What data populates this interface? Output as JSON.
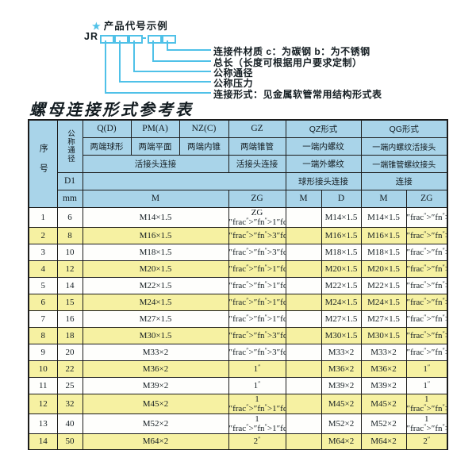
{
  "colors": {
    "page_bg": "#ffffff",
    "header_bg": "#a9d4e9",
    "row_alt": "#f6f1a2",
    "row_plain": "#fefefc",
    "line_cyan": "#4fc1e8",
    "border_dark": "#1c1c1c",
    "text_dark": "#141d22"
  },
  "diagram": {
    "star_icon": "★",
    "title": "产品代号示例",
    "code_prefix": "JR",
    "labels": [
      "连接件材质  c：为碳钢  b：为不锈钢",
      "总长（长度可根据用户要求定制）",
      "公称通径",
      "公称压力",
      "连接形式：见金属软管常用结构形式表"
    ]
  },
  "table": {
    "title": "螺母连接形式参考表",
    "header": {
      "seq": "序号",
      "dn": "公称通径",
      "d1": "D1",
      "mm": "mm",
      "col_q": "Q(D)",
      "col_pm": "PM(A)",
      "col_nz": "NZ(C)",
      "col_gz": "GZ",
      "col_qz": "QZ形式",
      "col_qg": "QG形式",
      "q_desc": "两端球形",
      "pm_desc": "两端平面",
      "nz_desc": "两端内锥",
      "gz_desc": "两端锥管",
      "qz_desc1": "一端内螺纹",
      "qg_desc1": "一端内螺纹活接头",
      "union_conn": "活接头连接",
      "gz_conn": "活接头连接",
      "qz_desc2": "一端外螺纹",
      "qg_desc2": "一端锥管螺纹接头",
      "qz_conn": "球形接头连接",
      "qg_conn": "连接",
      "m_main": "M",
      "zg_main": "ZG",
      "qz_m": "M",
      "qz_d": "D",
      "qg_m": "M",
      "qg_zg": "ZG"
    },
    "rows": [
      {
        "seq": "1",
        "dn": "6",
        "m": "M14×1.5",
        "zg": "ZG 1/4\"",
        "qz_m": "",
        "qz_d": "M14×1.5",
        "qg_m": "M14×1.5",
        "qg_zg": "1/4\""
      },
      {
        "seq": "2",
        "dn": "8",
        "m": "M16×1.5",
        "zg": "3/8\"",
        "qz_m": "",
        "qz_d": "M16×1.5",
        "qg_m": "M16×1.5",
        "qg_zg": "3/8\""
      },
      {
        "seq": "3",
        "dn": "10",
        "m": "M18×1.5",
        "zg": "3/8\"",
        "qz_m": "",
        "qz_d": "M18×1.5",
        "qg_m": "M18×1.5",
        "qg_zg": "3/8\""
      },
      {
        "seq": "4",
        "dn": "12",
        "m": "M20×1.5",
        "zg": "1/2\"",
        "qz_m": "",
        "qz_d": "M20×1.5",
        "qg_m": "M20×1.5",
        "qg_zg": "1/2\""
      },
      {
        "seq": "5",
        "dn": "14",
        "m": "M22×1.5",
        "zg": "1/2\"",
        "qz_m": "",
        "qz_d": "M22×1.5",
        "qg_m": "M22×1.5",
        "qg_zg": "1/2\""
      },
      {
        "seq": "6",
        "dn": "15",
        "m": "M24×1.5",
        "zg": "1/2\"",
        "qz_m": "",
        "qz_d": "M24×1.5",
        "qg_m": "M24×1.5",
        "qg_zg": "1/2\""
      },
      {
        "seq": "7",
        "dn": "16",
        "m": "M27×1.5",
        "zg": "1/2\"",
        "qz_m": "",
        "qz_d": "M27×1.5",
        "qg_m": "M27×1.5",
        "qg_zg": "1/2\""
      },
      {
        "seq": "8",
        "dn": "18",
        "m": "M30×1.5",
        "zg": "3/4\"",
        "qz_m": "",
        "qz_d": "M30×1.5",
        "qg_m": "M30×1.5",
        "qg_zg": "3/4\""
      },
      {
        "seq": "9",
        "dn": "20",
        "m": "M33×2",
        "zg": "3/4\"",
        "qz_m": "",
        "qz_d": "M33×2",
        "qg_m": "M33×2",
        "qg_zg": "3/4\""
      },
      {
        "seq": "10",
        "dn": "22",
        "m": "M36×2",
        "zg": "1\"",
        "qz_m": "",
        "qz_d": "M36×2",
        "qg_m": "M36×2",
        "qg_zg": "1\""
      },
      {
        "seq": "11",
        "dn": "25",
        "m": "M39×2",
        "zg": "1\"",
        "qz_m": "",
        "qz_d": "M39×2",
        "qg_m": "M39×2",
        "qg_zg": "1\""
      },
      {
        "seq": "12",
        "dn": "32",
        "m": "M45×2",
        "zg": "1 1/4\"",
        "qz_m": "",
        "qz_d": "M45×2",
        "qg_m": "M45×2",
        "qg_zg": "1 1/4\""
      },
      {
        "seq": "13",
        "dn": "40",
        "m": "M52×2",
        "zg": "1 1/2\"",
        "qz_m": "",
        "qz_d": "M52×2",
        "qg_m": "M52×2",
        "qg_zg": "1 1/2\""
      },
      {
        "seq": "14",
        "dn": "50",
        "m": "M64×2",
        "zg": "2\"",
        "qz_m": "",
        "qz_d": "M64×2",
        "qg_m": "M64×2",
        "qg_zg": "2\""
      }
    ]
  }
}
